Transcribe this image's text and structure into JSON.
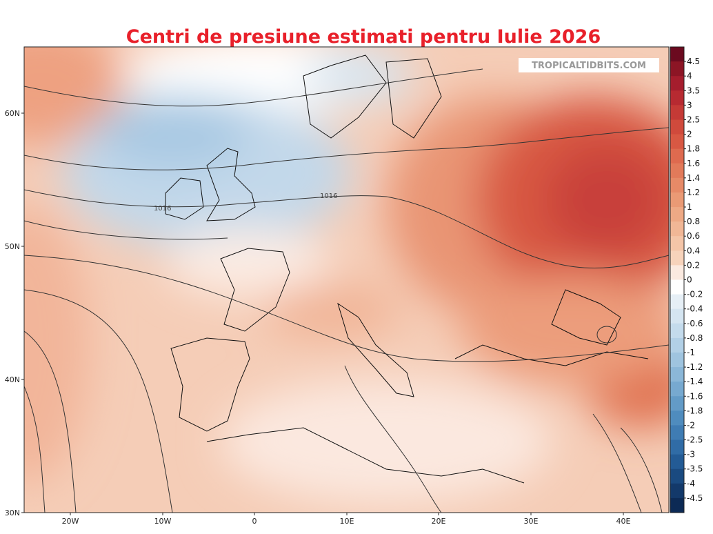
{
  "header": {
    "title": "Centri de presiune estimati pentru Iulie 2026"
  },
  "watermark": "TROPICALTIDBITS.COM",
  "map": {
    "lat_labels": [
      "60N",
      "50N",
      "40N",
      "30N"
    ],
    "lon_labels": [
      "20W",
      "10W",
      "0",
      "10E",
      "20E",
      "30E",
      "40E"
    ],
    "isobar_labels": [
      "1016",
      "1016"
    ]
  },
  "colorbar": {
    "labels": [
      4.5,
      4,
      3.5,
      3,
      2.5,
      2,
      1.8,
      1.6,
      1.4,
      1.2,
      1,
      0.8,
      0.6,
      0.4,
      0.2,
      0,
      -0.2,
      -0.4,
      -0.6,
      -0.8,
      -1,
      -1.2,
      -1.4,
      -1.6,
      -1.8,
      -2,
      -2.5,
      -3,
      -3.5,
      -4,
      -4.5
    ],
    "colors": [
      "#6b0a1f",
      "#8c1525",
      "#a51d2d",
      "#b72a31",
      "#c53a36",
      "#d04a3c",
      "#d85843",
      "#de6a4f",
      "#e27a5a",
      "#e68a67",
      "#ea9a75",
      "#eea985",
      "#f1b796",
      "#f4c5a8",
      "#f7d3bb",
      "#fbeae0",
      "#ffffff",
      "#e6eff6",
      "#d5e5f1",
      "#c4dbec",
      "#b2d0e6",
      "#9fc4df",
      "#8bb7d8",
      "#77a9d0",
      "#639bc7",
      "#4f8cbe",
      "#3f7cb3",
      "#306ca6",
      "#235b95",
      "#1a4a80",
      "#13396a",
      "#0c2a55"
    ]
  }
}
